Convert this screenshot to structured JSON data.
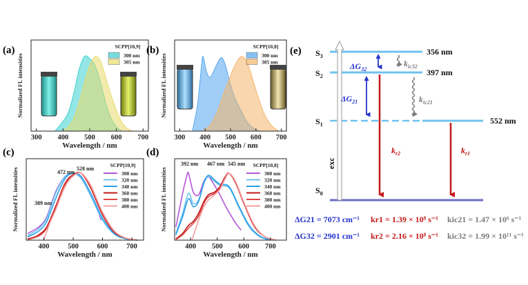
{
  "colors": {
    "cyan_fill": "#3ccfcf",
    "yellow_fill": "#f2e79a",
    "blue_fill": "#53a6f0",
    "orange_fill": "#f4b56a",
    "level_line": "#6fc1ee",
    "ground_line": "#6b6bc8",
    "kr_arrow": "#c21818",
    "delta_blue": "#2233cc",
    "kic_gray": "#7a7a7a"
  },
  "chart_data": [
    {
      "panel": "(a)",
      "type": "area",
      "xlabel": "Wavelength / nm",
      "ylabel": "Normalized FL intensities",
      "xlim": [
        280,
        720
      ],
      "xticks": [
        300,
        400,
        500,
        600,
        700
      ],
      "legend_title": "SCPP[10,9]",
      "legend_position": "top-right",
      "series": [
        {
          "name": "300 nm",
          "color": "#3ccfcf",
          "x": [
            370,
            400,
            420,
            440,
            460,
            480,
            500,
            520,
            540,
            560,
            580,
            600,
            620
          ],
          "y": [
            0.0,
            0.13,
            0.25,
            0.5,
            0.82,
            1.0,
            0.97,
            0.88,
            0.66,
            0.38,
            0.17,
            0.06,
            0.0
          ]
        },
        {
          "name": "305 nm",
          "color": "#e8db6a",
          "x": [
            400,
            420,
            440,
            460,
            480,
            500,
            520,
            540,
            560,
            580,
            600,
            620,
            640,
            660
          ],
          "y": [
            0.0,
            0.06,
            0.17,
            0.38,
            0.65,
            0.88,
            1.0,
            0.94,
            0.72,
            0.48,
            0.28,
            0.12,
            0.04,
            0.0
          ]
        }
      ]
    },
    {
      "panel": "(b)",
      "type": "area",
      "xlabel": "Wavelength / nm",
      "ylabel": "Normalized FL intensities",
      "xlim": [
        280,
        720
      ],
      "xticks": [
        300,
        400,
        500,
        600,
        700
      ],
      "legend_title": "SCPP[10,8]",
      "legend_position": "top-right",
      "series": [
        {
          "name": "300 nm",
          "color": "#53a6f0",
          "x": [
            350,
            370,
            385,
            392,
            405,
            420,
            440,
            455,
            467,
            480,
            500,
            520,
            545,
            570,
            600,
            620
          ],
          "y": [
            0.0,
            0.35,
            0.85,
            1.0,
            0.8,
            0.72,
            0.85,
            0.95,
            0.98,
            0.88,
            0.62,
            0.42,
            0.25,
            0.1,
            0.02,
            0.0
          ]
        },
        {
          "name": "305 nm",
          "color": "#f4b56a",
          "x": [
            390,
            420,
            450,
            475,
            500,
            520,
            545,
            570,
            600,
            630,
            660,
            690
          ],
          "y": [
            0.0,
            0.08,
            0.28,
            0.52,
            0.74,
            0.9,
            1.0,
            0.88,
            0.55,
            0.25,
            0.08,
            0.0
          ]
        }
      ]
    },
    {
      "panel": "(c)",
      "type": "line",
      "xlabel": "Wavelength / nm",
      "ylabel": "Normalized FL intensities",
      "xlim": [
        340,
        740
      ],
      "xticks": [
        400,
        500,
        600,
        700
      ],
      "legend_title": "SCPP[10,9]",
      "legend_position": "top-right",
      "annotations": [
        "389 nm",
        "472 nm",
        "528 nm"
      ],
      "series": [
        {
          "name": "300 nm",
          "color": "#b455d8",
          "x": [
            345,
            370,
            389,
            410,
            440,
            472,
            500,
            528,
            560,
            580,
            595
          ],
          "y": [
            0.1,
            0.16,
            0.22,
            0.35,
            0.72,
            0.95,
            1.0,
            0.94,
            0.7,
            0.5,
            0.3
          ]
        },
        {
          "name": "320 nm",
          "color": "#6fc1ee",
          "x": [
            345,
            370,
            389,
            410,
            440,
            472,
            500,
            528,
            560,
            600,
            640,
            680,
            720
          ],
          "y": [
            0.07,
            0.13,
            0.2,
            0.33,
            0.7,
            0.95,
            1.0,
            0.92,
            0.66,
            0.3,
            0.09,
            0.02,
            0.0
          ]
        },
        {
          "name": "340 nm",
          "color": "#2b9fe8",
          "x": [
            345,
            370,
            389,
            410,
            440,
            472,
            500,
            528,
            560,
            600,
            640,
            680,
            720
          ],
          "y": [
            0.05,
            0.1,
            0.16,
            0.28,
            0.62,
            0.92,
            1.0,
            0.95,
            0.7,
            0.33,
            0.1,
            0.02,
            0.0
          ]
        },
        {
          "name": "360 nm",
          "color": "#c01818",
          "x": [
            345,
            370,
            389,
            410,
            440,
            472,
            500,
            528,
            560,
            600,
            640,
            680,
            720
          ],
          "y": [
            0.02,
            0.05,
            0.1,
            0.2,
            0.5,
            0.85,
            0.98,
            1.0,
            0.78,
            0.38,
            0.12,
            0.03,
            0.0
          ]
        },
        {
          "name": "380 nm",
          "color": "#e04444",
          "x": [
            345,
            370,
            389,
            410,
            440,
            472,
            500,
            528,
            560,
            600,
            640,
            680,
            720
          ],
          "y": [
            0.01,
            0.04,
            0.08,
            0.18,
            0.47,
            0.83,
            0.97,
            1.0,
            0.8,
            0.4,
            0.13,
            0.03,
            0.0
          ]
        },
        {
          "name": "400 nm",
          "color": "#f2a0a0",
          "x": [
            400,
            420,
            440,
            472,
            500,
            528,
            560,
            600,
            640,
            680,
            720
          ],
          "y": [
            0.0,
            0.25,
            0.45,
            0.8,
            0.96,
            1.0,
            0.82,
            0.42,
            0.14,
            0.03,
            0.0
          ]
        }
      ]
    },
    {
      "panel": "(d)",
      "type": "line",
      "xlabel": "Wavelength / nm",
      "ylabel": "Normalized FL intensities",
      "xlim": [
        340,
        760
      ],
      "xticks": [
        400,
        500,
        600,
        700
      ],
      "legend_title": "SCPP[10,8]",
      "legend_position": "top-right",
      "annotations": [
        "392 nm",
        "467 nm",
        "545 nm"
      ],
      "series": [
        {
          "name": "300 nm",
          "color": "#b455d8",
          "x": [
            345,
            370,
            385,
            392,
            410,
            430,
            450,
            467,
            490,
            510,
            530,
            550,
            570,
            590
          ],
          "y": [
            0.2,
            0.7,
            0.95,
            1.0,
            0.72,
            0.68,
            0.88,
            0.95,
            0.82,
            0.68,
            0.52,
            0.38,
            0.25,
            0.15
          ]
        },
        {
          "name": "320 nm",
          "color": "#6fc1ee",
          "x": [
            345,
            370,
            392,
            410,
            430,
            450,
            467,
            490,
            510,
            545,
            580,
            620,
            660,
            700
          ],
          "y": [
            0.1,
            0.4,
            0.7,
            0.55,
            0.6,
            0.85,
            0.95,
            0.88,
            0.82,
            0.78,
            0.5,
            0.2,
            0.05,
            0.0
          ]
        },
        {
          "name": "340 nm",
          "color": "#2b9fe8",
          "x": [
            345,
            370,
            392,
            410,
            430,
            450,
            467,
            490,
            510,
            545,
            580,
            620,
            660,
            700
          ],
          "y": [
            0.08,
            0.35,
            0.62,
            0.5,
            0.58,
            0.86,
            0.97,
            0.9,
            0.84,
            0.8,
            0.52,
            0.22,
            0.06,
            0.0
          ]
        },
        {
          "name": "360 nm",
          "color": "#c01818",
          "x": [
            345,
            370,
            392,
            410,
            430,
            450,
            467,
            490,
            510,
            530,
            545,
            570,
            600,
            640,
            680,
            720
          ],
          "y": [
            0.02,
            0.1,
            0.22,
            0.28,
            0.4,
            0.58,
            0.68,
            0.72,
            0.8,
            0.95,
            1.0,
            0.85,
            0.55,
            0.2,
            0.05,
            0.0
          ]
        },
        {
          "name": "380 nm",
          "color": "#e04444",
          "x": [
            345,
            370,
            392,
            410,
            430,
            450,
            467,
            490,
            510,
            530,
            545,
            570,
            600,
            640,
            680,
            720
          ],
          "y": [
            0.01,
            0.08,
            0.18,
            0.25,
            0.36,
            0.55,
            0.65,
            0.7,
            0.78,
            0.94,
            1.0,
            0.86,
            0.56,
            0.21,
            0.05,
            0.0
          ]
        },
        {
          "name": "400 nm",
          "color": "#f2a0a0",
          "x": [
            405,
            430,
            450,
            467,
            490,
            510,
            530,
            545,
            570,
            600,
            640,
            680,
            720
          ],
          "y": [
            0.0,
            0.3,
            0.5,
            0.6,
            0.68,
            0.76,
            0.92,
            1.0,
            0.87,
            0.57,
            0.22,
            0.05,
            0.0
          ]
        }
      ]
    }
  ],
  "energy_diagram": {
    "panel": "(e)",
    "levels": [
      {
        "state": "S3",
        "wavelength": "356 nm"
      },
      {
        "state": "S2",
        "wavelength": "397 nm"
      },
      {
        "state": "S1",
        "wavelength": "552 nm"
      },
      {
        "state": "S0",
        "wavelength": ""
      }
    ],
    "exc_label": "exc",
    "labels": {
      "dG32": "ΔG32",
      "dG21": "ΔG21",
      "kic32": "kic32",
      "kic21": "kic21",
      "kr2": "kr2",
      "kr1": "kr1"
    },
    "equations": {
      "dG21": "ΔG21 = 7073 cm⁻¹",
      "dG32": "ΔG32 = 2901 cm⁻¹",
      "kr1": "kr1 = 1.39 × 10⁸ s⁻¹",
      "kr2": "kr2 = 2.16 × 10⁸ s⁻¹",
      "kic21": "kic21 = 1.47 × 10⁶ s⁻¹",
      "kic32": "kic32 = 1.99 × 10¹¹ s⁻¹"
    }
  }
}
